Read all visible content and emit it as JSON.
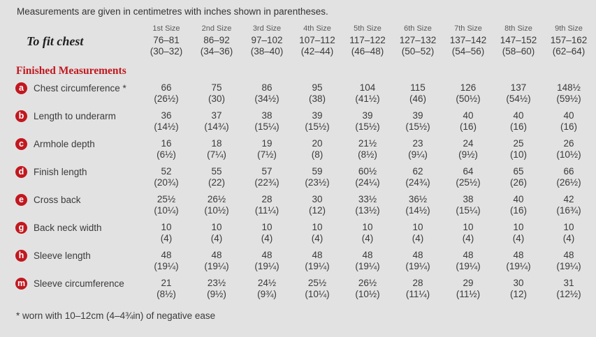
{
  "intro": "Measurements are given in centimetres with inches shown in parentheses.",
  "size_headers": [
    "1st Size",
    "2nd Size",
    "3rd Size",
    "4th Size",
    "5th Size",
    "6th Size",
    "7th Size",
    "8th Size",
    "9th Size"
  ],
  "fit_row": {
    "label": "To fit chest",
    "values": [
      {
        "cm": "76–81",
        "in": "(30–32)"
      },
      {
        "cm": "86–92",
        "in": "(34–36)"
      },
      {
        "cm": "97–102",
        "in": "(38–40)"
      },
      {
        "cm": "107–112",
        "in": "(42–44)"
      },
      {
        "cm": "117–122",
        "in": "(46–48)"
      },
      {
        "cm": "127–132",
        "in": "(50–52)"
      },
      {
        "cm": "137–142",
        "in": "(54–56)"
      },
      {
        "cm": "147–152",
        "in": "(58–60)"
      },
      {
        "cm": "157–162",
        "in": "(62–64)"
      }
    ]
  },
  "section_title": "Finished Measurements",
  "rows": [
    {
      "badge": "a",
      "label": "Chest circumference *",
      "values": [
        {
          "cm": "66",
          "in": "(26½)"
        },
        {
          "cm": "75",
          "in": "(30)"
        },
        {
          "cm": "86",
          "in": "(34½)"
        },
        {
          "cm": "95",
          "in": "(38)"
        },
        {
          "cm": "104",
          "in": "(41½)"
        },
        {
          "cm": "115",
          "in": "(46)"
        },
        {
          "cm": "126",
          "in": "(50½)"
        },
        {
          "cm": "137",
          "in": "(54½)"
        },
        {
          "cm": "148½",
          "in": "(59½)"
        }
      ]
    },
    {
      "badge": "b",
      "label": "Length to underarm",
      "values": [
        {
          "cm": "36",
          "in": "(14½)"
        },
        {
          "cm": "37",
          "in": "(14¾)"
        },
        {
          "cm": "38",
          "in": "(15¼)"
        },
        {
          "cm": "39",
          "in": "(15½)"
        },
        {
          "cm": "39",
          "in": "(15½)"
        },
        {
          "cm": "39",
          "in": "(15½)"
        },
        {
          "cm": "40",
          "in": "(16)"
        },
        {
          "cm": "40",
          "in": "(16)"
        },
        {
          "cm": "40",
          "in": "(16)"
        }
      ]
    },
    {
      "badge": "c",
      "label": "Armhole depth",
      "values": [
        {
          "cm": "16",
          "in": "(6½)"
        },
        {
          "cm": "18",
          "in": "(7¼)"
        },
        {
          "cm": "19",
          "in": "(7½)"
        },
        {
          "cm": "20",
          "in": "(8)"
        },
        {
          "cm": "21½",
          "in": "(8½)"
        },
        {
          "cm": "23",
          "in": "(9¼)"
        },
        {
          "cm": "24",
          "in": "(9½)"
        },
        {
          "cm": "25",
          "in": "(10)"
        },
        {
          "cm": "26",
          "in": "(10½)"
        }
      ]
    },
    {
      "badge": "d",
      "label": "Finish length",
      "values": [
        {
          "cm": "52",
          "in": "(20¾)"
        },
        {
          "cm": "55",
          "in": "(22)"
        },
        {
          "cm": "57",
          "in": "(22¾)"
        },
        {
          "cm": "59",
          "in": "(23½)"
        },
        {
          "cm": "60½",
          "in": "(24¼)"
        },
        {
          "cm": "62",
          "in": "(24¾)"
        },
        {
          "cm": "64",
          "in": "(25½)"
        },
        {
          "cm": "65",
          "in": "(26)"
        },
        {
          "cm": "66",
          "in": "(26½)"
        }
      ]
    },
    {
      "badge": "e",
      "label": "Cross back",
      "values": [
        {
          "cm": "25½",
          "in": "(10¼)"
        },
        {
          "cm": "26½",
          "in": "(10½)"
        },
        {
          "cm": "28",
          "in": "(11¼)"
        },
        {
          "cm": "30",
          "in": "(12)"
        },
        {
          "cm": "33½",
          "in": "(13½)"
        },
        {
          "cm": "36½",
          "in": "(14½)"
        },
        {
          "cm": "38",
          "in": "(15¼)"
        },
        {
          "cm": "40",
          "in": "(16)"
        },
        {
          "cm": "42",
          "in": "(16¾)"
        }
      ]
    },
    {
      "badge": "g",
      "label": "Back neck width",
      "values": [
        {
          "cm": "10",
          "in": "(4)"
        },
        {
          "cm": "10",
          "in": "(4)"
        },
        {
          "cm": "10",
          "in": "(4)"
        },
        {
          "cm": "10",
          "in": "(4)"
        },
        {
          "cm": "10",
          "in": "(4)"
        },
        {
          "cm": "10",
          "in": "(4)"
        },
        {
          "cm": "10",
          "in": "(4)"
        },
        {
          "cm": "10",
          "in": "(4)"
        },
        {
          "cm": "10",
          "in": "(4)"
        }
      ]
    },
    {
      "badge": "h",
      "label": "Sleeve length",
      "values": [
        {
          "cm": "48",
          "in": "(19¼)"
        },
        {
          "cm": "48",
          "in": "(19¼)"
        },
        {
          "cm": "48",
          "in": "(19¼)"
        },
        {
          "cm": "48",
          "in": "(19¼)"
        },
        {
          "cm": "48",
          "in": "(19¼)"
        },
        {
          "cm": "48",
          "in": "(19¼)"
        },
        {
          "cm": "48",
          "in": "(19¼)"
        },
        {
          "cm": "48",
          "in": "(19¼)"
        },
        {
          "cm": "48",
          "in": "(19¼)"
        }
      ]
    },
    {
      "badge": "m",
      "label": "Sleeve circumference",
      "values": [
        {
          "cm": "21",
          "in": "(8½)"
        },
        {
          "cm": "23½",
          "in": "(9½)"
        },
        {
          "cm": "24½",
          "in": "(9¾)"
        },
        {
          "cm": "25½",
          "in": "(10¼)"
        },
        {
          "cm": "26½",
          "in": "(10½)"
        },
        {
          "cm": "28",
          "in": "(11¼)"
        },
        {
          "cm": "29",
          "in": "(11½)"
        },
        {
          "cm": "30",
          "in": "(12)"
        },
        {
          "cm": "31",
          "in": "(12½)"
        }
      ]
    }
  ],
  "footnote": "* worn with 10–12cm (4–4¾in) of negative ease",
  "colors": {
    "accent_red": "#c1181f",
    "background": "#e2e2e2",
    "body_text": "#3a3a3a",
    "header_gray": "#595959"
  }
}
